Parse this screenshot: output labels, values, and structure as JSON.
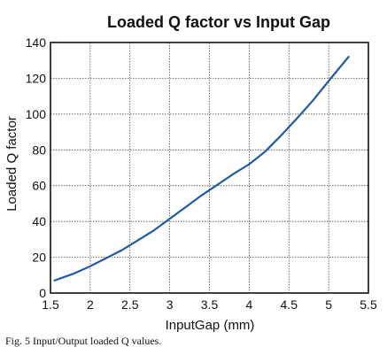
{
  "chart_data": {
    "type": "line",
    "title": "Loaded Q factor vs Input Gap",
    "xlabel": "InputGap (mm)",
    "ylabel": "Loaded Q factor",
    "xlim": [
      1.5,
      5.5
    ],
    "ylim": [
      0,
      140
    ],
    "xticks": [
      1.5,
      2,
      2.5,
      3,
      3.5,
      4,
      4.5,
      5,
      5.5
    ],
    "xtick_labels": [
      "1.5",
      "2",
      "2.5",
      "3",
      "3.5",
      "4",
      "4.5",
      "5",
      "5.5"
    ],
    "yticks": [
      0,
      20,
      40,
      60,
      80,
      100,
      120,
      140
    ],
    "ytick_labels": [
      "0",
      "20",
      "40",
      "60",
      "80",
      "100",
      "120",
      "140"
    ],
    "grid": true,
    "series": [
      {
        "color": "#1f5aa6",
        "x": [
          1.55,
          1.8,
          2.0,
          2.2,
          2.4,
          2.6,
          2.8,
          3.0,
          3.2,
          3.4,
          3.6,
          3.8,
          4.0,
          4.2,
          4.4,
          4.6,
          4.8,
          5.0,
          5.25
        ],
        "y": [
          7,
          11,
          15,
          19.5,
          24,
          29.5,
          35,
          41.5,
          48,
          54.5,
          60.5,
          66.5,
          72,
          79,
          88,
          97.5,
          107.5,
          118.5,
          132
        ]
      }
    ]
  },
  "caption": "Fig. 5 Input/Output loaded Q values."
}
